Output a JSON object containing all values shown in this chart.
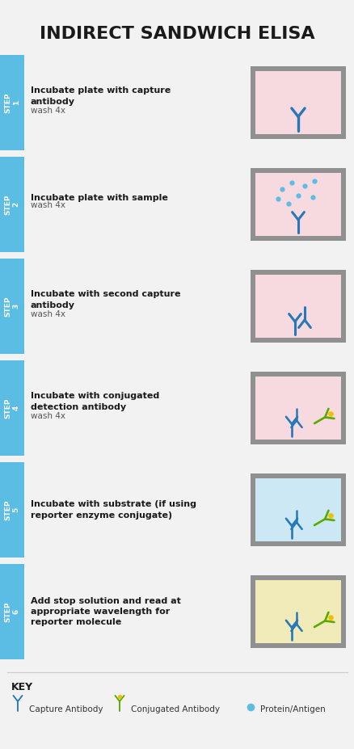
{
  "title": "INDIRECT SANDWICH ELISA",
  "title_fontsize": 16,
  "title_color": "#1a1a1a",
  "bg_color": "#f2f2f2",
  "step_tab_color": "#5bbde4",
  "step_tab_text_color": "#ffffff",
  "gray_color": "#909090",
  "steps": [
    {
      "number": "1",
      "bold_text": "Incubate plate with capture\nantibody",
      "light_text": "wash 4x",
      "well_bg": "#f7d9e0",
      "scene": "step1"
    },
    {
      "number": "2",
      "bold_text": "Incubate plate with sample",
      "light_text": "wash 4x",
      "well_bg": "#f7d9e0",
      "scene": "step2"
    },
    {
      "number": "3",
      "bold_text": "Incubate with second capture\nantibody",
      "light_text": "wash 4x",
      "well_bg": "#f7d9e0",
      "scene": "step3"
    },
    {
      "number": "4",
      "bold_text": "Incubate with conjugated\ndetection antibody",
      "light_text": "wash 4x",
      "well_bg": "#f7d9e0",
      "scene": "step4"
    },
    {
      "number": "5",
      "bold_text": "Incubate with substrate (if using\nreporter enzyme conjugate)",
      "light_text": "",
      "well_bg": "#cce8f4",
      "scene": "step5"
    },
    {
      "number": "6",
      "bold_text": "Add stop solution and read at\nappropriate wavelength for\nreporter molecule",
      "light_text": "",
      "well_bg": "#f0ebb8",
      "scene": "step6"
    }
  ],
  "blue_ab_color": "#2878b8",
  "green_ab_color": "#5aaa00",
  "yellow_dot_color": "#f0c000",
  "antigen_color": "#5bbde4"
}
